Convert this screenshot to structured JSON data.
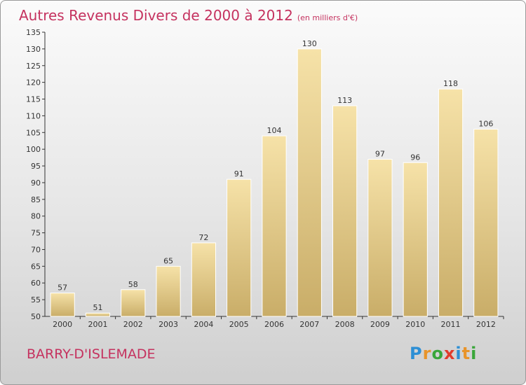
{
  "title": "Autres Revenus Divers de 2000 à 2012",
  "subtitle": "(en milliers d'€)",
  "town": "BARRY-D'ISLEMADE",
  "logo": "Proxiti",
  "colors": {
    "title": "#c5325f",
    "bar_light": "#f6e2a8",
    "bar_dark": "#c9ad68",
    "bar_border": "#ffffff",
    "logo": [
      "#2d8fd5",
      "#e8942a",
      "#3aa63a",
      "#e23c2c",
      "#2d8fd5",
      "#e8942a",
      "#3aa63a"
    ]
  },
  "chart_data": {
    "type": "bar",
    "categories": [
      "2000",
      "2001",
      "2002",
      "2003",
      "2004",
      "2005",
      "2006",
      "2007",
      "2008",
      "2009",
      "2010",
      "2011",
      "2012"
    ],
    "values": [
      57,
      51,
      58,
      65,
      72,
      91,
      104,
      130,
      113,
      97,
      96,
      118,
      106
    ],
    "ylim": [
      50,
      135
    ],
    "yticks": [
      50,
      55,
      60,
      65,
      70,
      75,
      80,
      85,
      90,
      95,
      100,
      105,
      110,
      115,
      120,
      125,
      130,
      135
    ],
    "grid": false,
    "data_labels": true
  }
}
